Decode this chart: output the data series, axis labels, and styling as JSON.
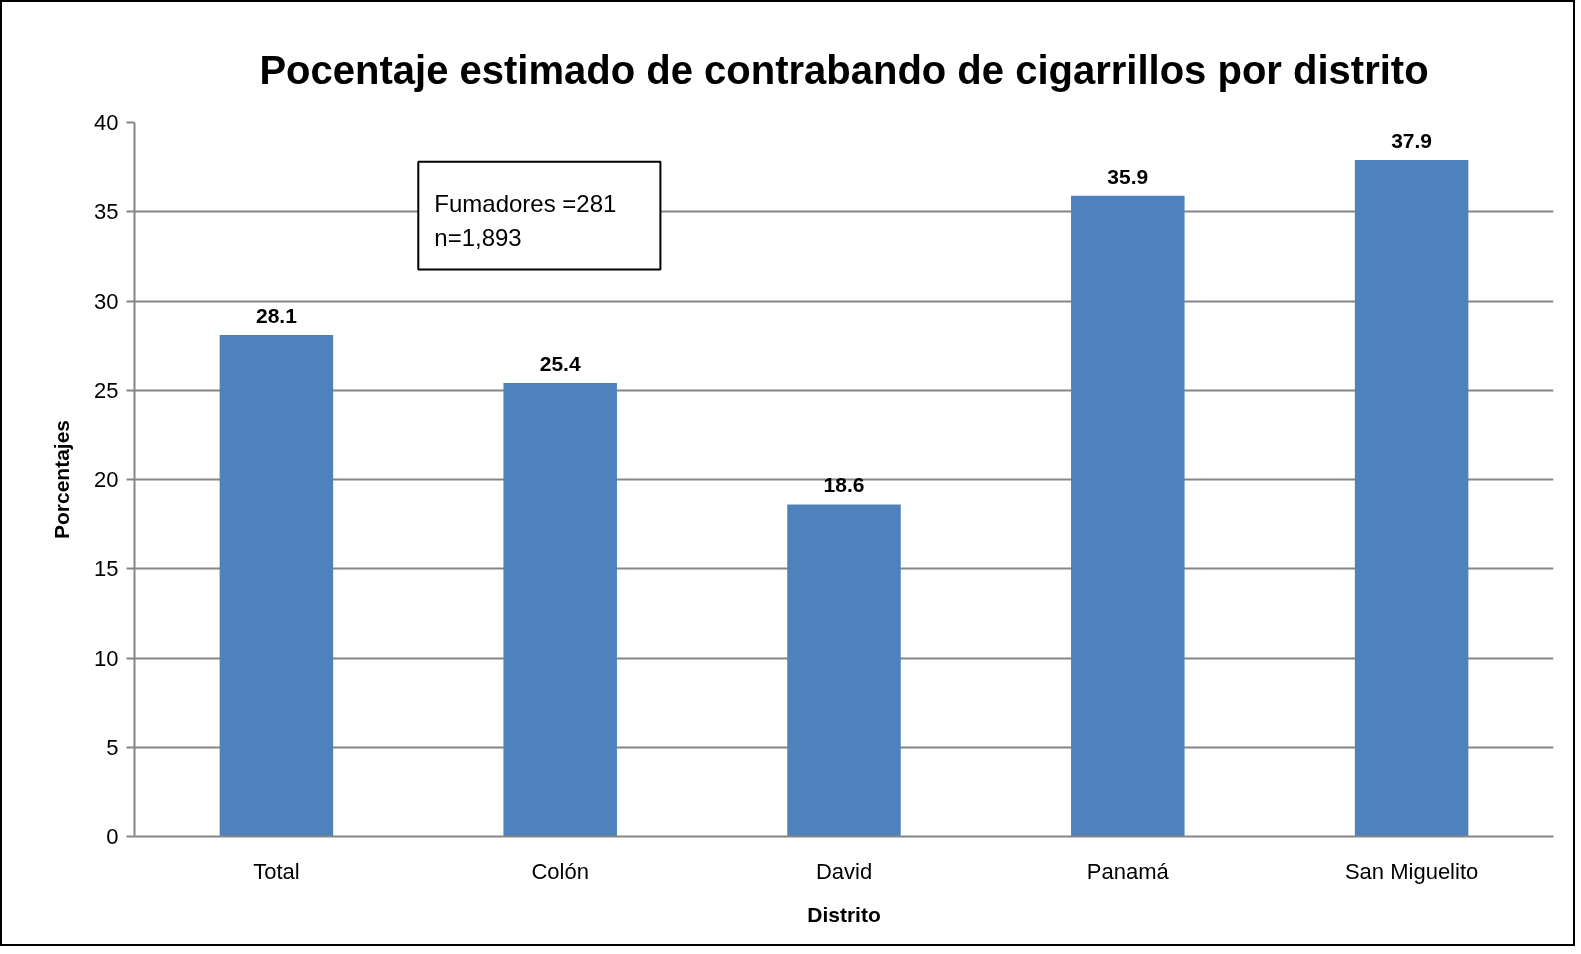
{
  "chart_data": {
    "type": "bar",
    "title": "Pocentaje estimado de contrabando de cigarrillos por distrito",
    "xlabel": "Distrito",
    "ylabel": "Porcentajes",
    "categories": [
      "Total",
      "Colón",
      "David",
      "Panamá",
      "San Miguelito"
    ],
    "values": [
      28.1,
      25.4,
      18.6,
      35.9,
      37.9
    ],
    "color": "#4f81bd",
    "ylim": [
      0,
      40
    ],
    "yticks": [
      0,
      5,
      10,
      15,
      20,
      25,
      30,
      35,
      40
    ],
    "grid": "y",
    "data_labels": true,
    "annotations": [
      "Fumadores =281\nn=1,893"
    ]
  }
}
